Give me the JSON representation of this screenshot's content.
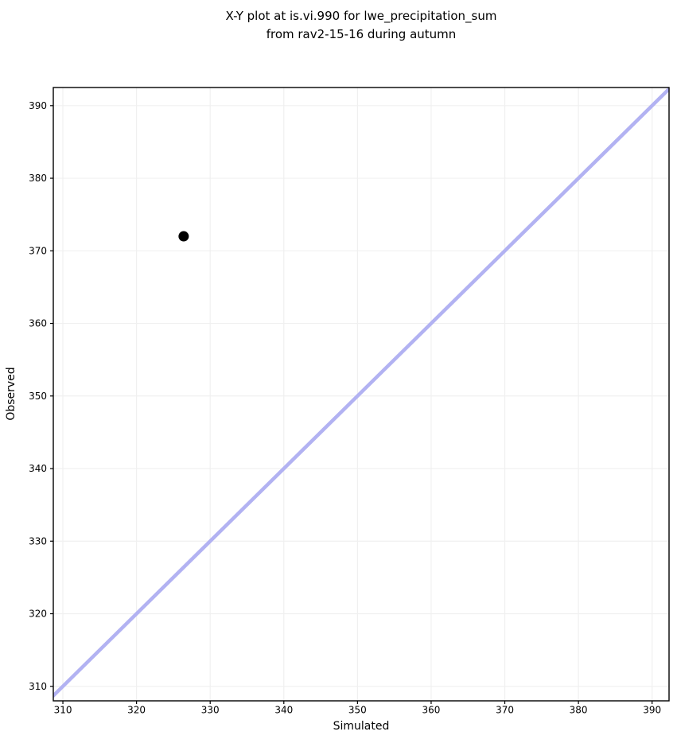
{
  "chart_data": {
    "type": "scatter",
    "title_lines": [
      "X-Y plot at is.vi.990 for lwe_precipitation_sum",
      "from rav2-15-16 during autumn"
    ],
    "xlabel": "Simulated",
    "ylabel": "Observed",
    "xlim": [
      308.7,
      392.3
    ],
    "ylim": [
      308.0,
      392.5
    ],
    "xticks": [
      310,
      320,
      330,
      340,
      350,
      360,
      370,
      380,
      390
    ],
    "yticks": [
      310,
      320,
      330,
      340,
      350,
      360,
      370,
      380,
      390
    ],
    "grid": true,
    "legend": false,
    "points": [
      {
        "x": 326.4,
        "y": 372.0
      }
    ],
    "identity_line": {
      "slope": 1,
      "intercept": 0
    },
    "colors": {
      "background": "#ffffff",
      "point": "#000000",
      "identity_line": "#b2b2f2",
      "grid": "#f0f0f0",
      "spine": "#000000",
      "text": "#000000"
    }
  }
}
